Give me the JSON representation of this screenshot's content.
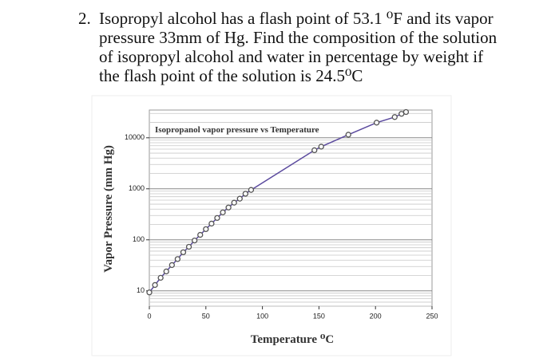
{
  "question": {
    "number": "2.",
    "lines": [
      "Isopropyl alcohol has a flash point of 53.1 ⁰F and its vapor",
      "pressure 33mm of Hg. Find the composition of the solution",
      "of isopropyl alcohol and water in percentage by weight if",
      "the flash point of the solution is 24.5⁰C"
    ]
  },
  "chart_data": {
    "type": "line",
    "title": "Isopropanol vapor pressure vs Temperature",
    "x_label": "Temperature ⁰C",
    "y_label": "Vapor Pressure (mm Hg)",
    "log_y": true,
    "grid": true,
    "minor_grid": true,
    "xlim": [
      0,
      250
    ],
    "xticks": [
      0,
      50,
      100,
      150,
      200,
      250
    ],
    "ylim": [
      5,
      35000
    ],
    "yticks": [
      10,
      100,
      1000,
      10000
    ],
    "series": [
      {
        "color": "#5b4a9e",
        "x": [
          0,
          5,
          10,
          15,
          20,
          25,
          30,
          35,
          40,
          45,
          50,
          55,
          60,
          65,
          70,
          75,
          80,
          85,
          90,
          146,
          152,
          176,
          201,
          217,
          223,
          227
        ],
        "values": [
          9.3,
          13,
          18,
          24,
          32,
          42,
          57,
          73,
          97,
          125,
          162,
          208,
          268,
          345,
          430,
          535,
          640,
          800,
          950,
          5700,
          6700,
          11500,
          19800,
          25500,
          29500,
          32000
        ]
      }
    ]
  }
}
